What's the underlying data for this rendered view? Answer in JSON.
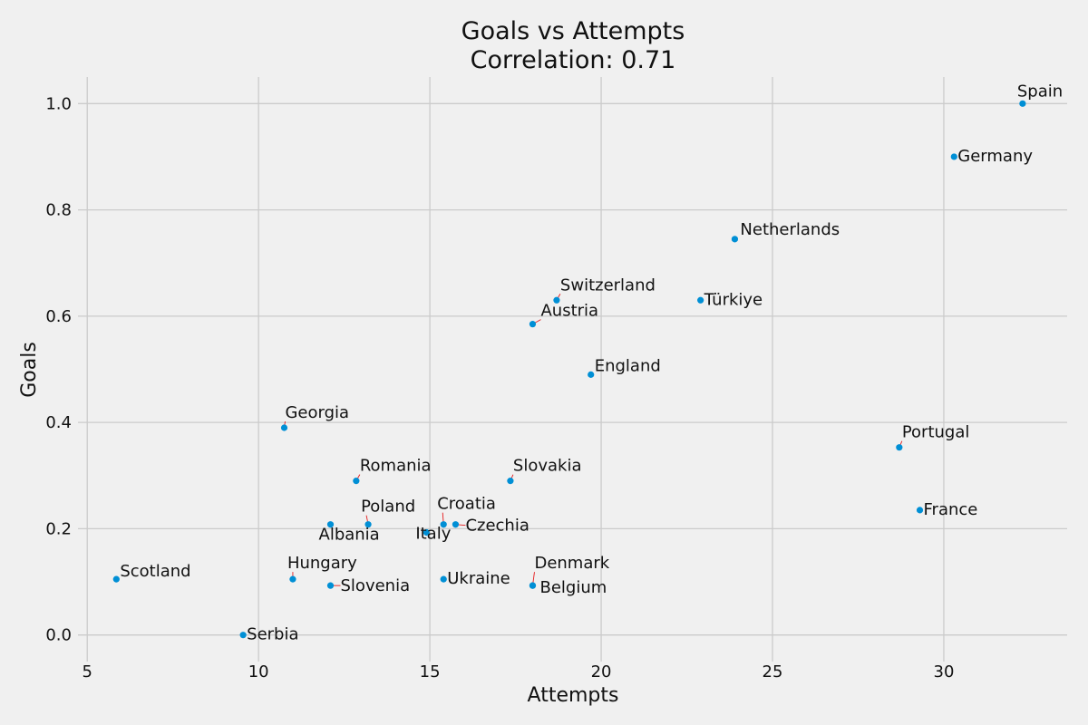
{
  "chart_data": {
    "type": "scatter",
    "title": "Goals vs Attempts",
    "subtitle": "Correlation: 0.71",
    "xlabel": "Attempts",
    "ylabel": "Goals",
    "xlim": [
      4.73,
      33.6
    ],
    "ylim": [
      -0.05,
      1.05
    ],
    "xticks": [
      5,
      10,
      15,
      20,
      25,
      30
    ],
    "yticks": [
      0.0,
      0.2,
      0.4,
      0.6,
      0.8,
      1.0
    ],
    "xtick_labels": [
      "5",
      "10",
      "15",
      "20",
      "25",
      "30"
    ],
    "ytick_labels": [
      "0.0",
      "0.2",
      "0.4",
      "0.6",
      "0.8",
      "1.0"
    ],
    "grid": true,
    "color": "#008fd5",
    "leader_color": "#e41a1c",
    "points": [
      {
        "label": "Spain",
        "x": 32.3,
        "y": 1.0
      },
      {
        "label": "Germany",
        "x": 30.3,
        "y": 0.9
      },
      {
        "label": "Netherlands",
        "x": 23.9,
        "y": 0.745
      },
      {
        "label": "Switzerland",
        "x": 18.7,
        "y": 0.63
      },
      {
        "label": "Türkiye",
        "x": 22.9,
        "y": 0.63
      },
      {
        "label": "Austria",
        "x": 18.0,
        "y": 0.585
      },
      {
        "label": "England",
        "x": 19.7,
        "y": 0.49
      },
      {
        "label": "Georgia",
        "x": 10.75,
        "y": 0.39
      },
      {
        "label": "Portugal",
        "x": 28.7,
        "y": 0.353
      },
      {
        "label": "Romania",
        "x": 12.85,
        "y": 0.29
      },
      {
        "label": "Slovakia",
        "x": 17.35,
        "y": 0.29
      },
      {
        "label": "France",
        "x": 29.3,
        "y": 0.235
      },
      {
        "label": "Poland",
        "x": 13.2,
        "y": 0.208
      },
      {
        "label": "Albania",
        "x": 12.1,
        "y": 0.208
      },
      {
        "label": "Croatia",
        "x": 15.4,
        "y": 0.208
      },
      {
        "label": "Czechia",
        "x": 15.75,
        "y": 0.208
      },
      {
        "label": "Italy",
        "x": 14.9,
        "y": 0.193
      },
      {
        "label": "Scotland",
        "x": 5.85,
        "y": 0.105
      },
      {
        "label": "Hungary",
        "x": 11.0,
        "y": 0.105
      },
      {
        "label": "Ukraine",
        "x": 15.4,
        "y": 0.105
      },
      {
        "label": "Slovenia",
        "x": 12.1,
        "y": 0.093
      },
      {
        "label": "Denmark",
        "x": 18.0,
        "y": 0.093
      },
      {
        "label": "Belgium",
        "x": 18.0,
        "y": 0.093
      },
      {
        "label": "Serbia",
        "x": 9.55,
        "y": 0.0
      }
    ]
  }
}
